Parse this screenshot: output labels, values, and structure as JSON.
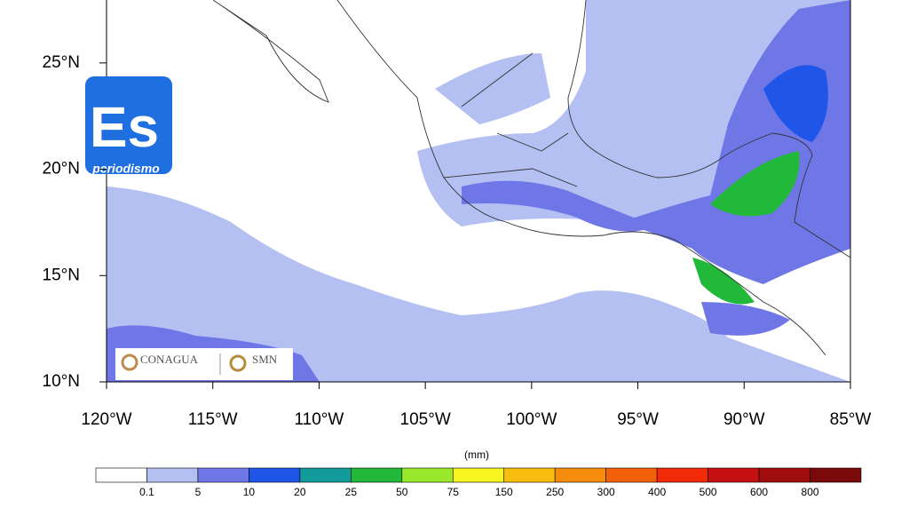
{
  "map": {
    "lat_ticks": [
      {
        "value": 25,
        "label": "25°N"
      },
      {
        "value": 20,
        "label": "20°N"
      },
      {
        "value": 15,
        "label": "15°N"
      },
      {
        "value": 10,
        "label": "10°N"
      }
    ],
    "lon_ticks": [
      {
        "value": -120,
        "label": "120°W"
      },
      {
        "value": -115,
        "label": "115°W"
      },
      {
        "value": -110,
        "label": "110°W"
      },
      {
        "value": -105,
        "label": "105°W"
      },
      {
        "value": -100,
        "label": "100°W"
      },
      {
        "value": -95,
        "label": "95°W"
      },
      {
        "value": -90,
        "label": "90°W"
      },
      {
        "value": -85,
        "label": "85°W"
      }
    ],
    "legend": {
      "unit": "(mm)",
      "levels": [
        0.1,
        5,
        10,
        20,
        25,
        50,
        75,
        150,
        250,
        300,
        400,
        500,
        600,
        800
      ],
      "colors": [
        "#ffffff",
        "#b4c0f2",
        "#6f76e6",
        "#1f55e8",
        "#139a9a",
        "#22b83a",
        "#99e82c",
        "#f8f520",
        "#f7be10",
        "#f58c0c",
        "#f2600a",
        "#f22a08",
        "#c41010",
        "#a00c0c",
        "#7a0a0a"
      ]
    }
  },
  "logos": {
    "badge": "Es",
    "badge_tagline": "periodismo",
    "agency": "CONAGUA",
    "service": "SMN"
  }
}
